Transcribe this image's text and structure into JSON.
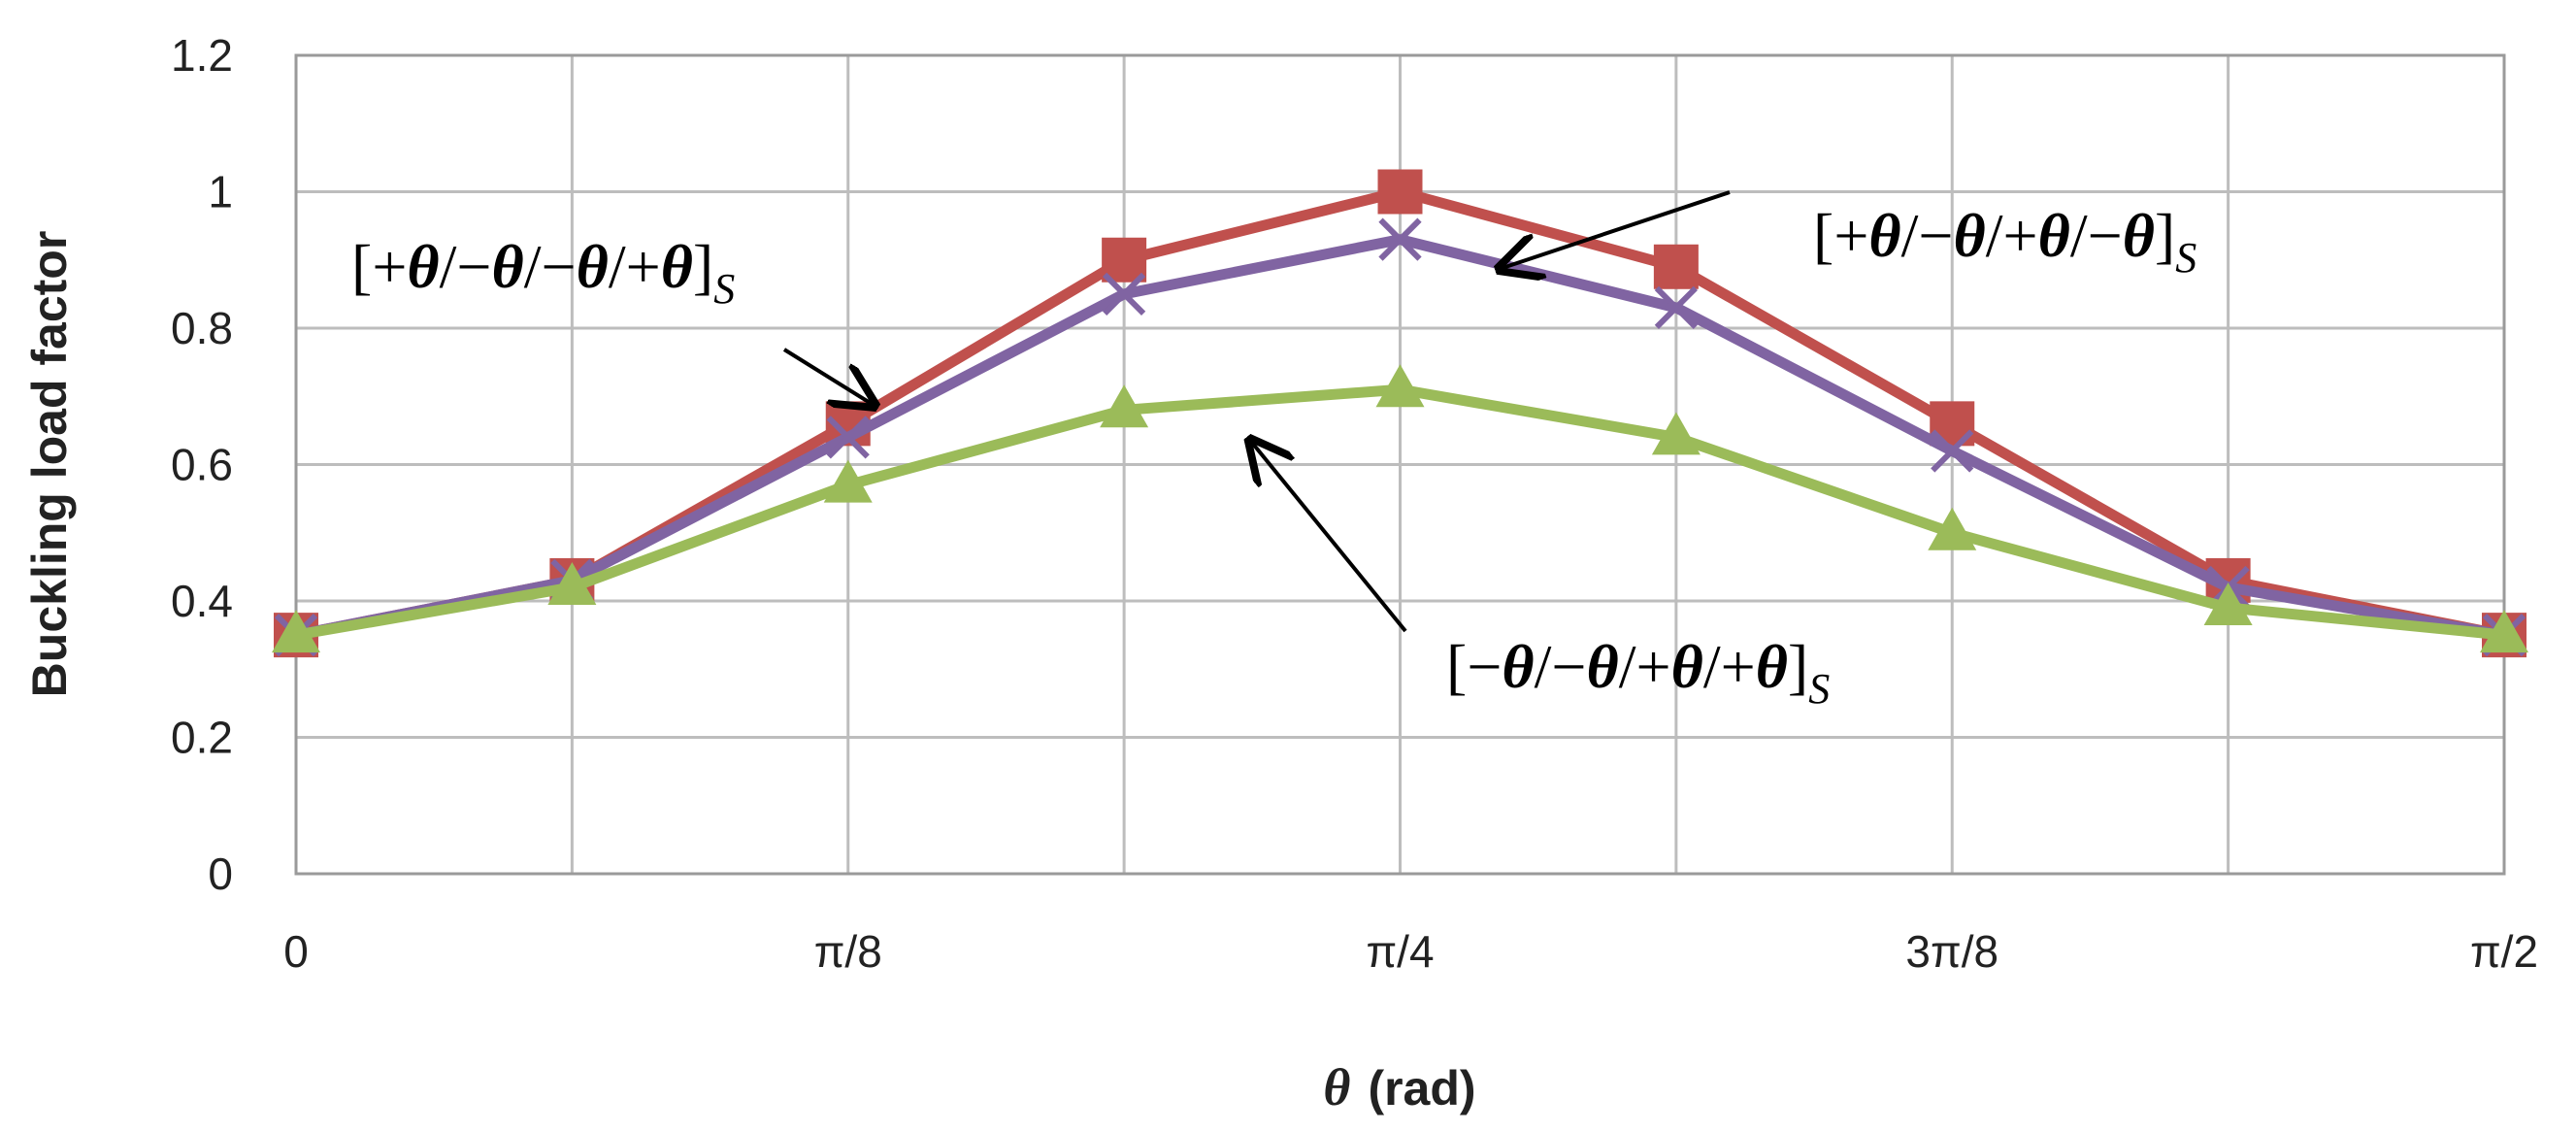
{
  "chart_data": {
    "type": "line",
    "x": [
      0,
      0.19635,
      0.3927,
      0.58905,
      0.7854,
      0.98175,
      1.1781,
      1.37445,
      1.5708
    ],
    "xticks": [
      {
        "value": 0,
        "label": "0"
      },
      {
        "value": 0.3927,
        "label": "π/8"
      },
      {
        "value": 0.7854,
        "label": "π/4"
      },
      {
        "value": 1.1781,
        "label": "3π/8"
      },
      {
        "value": 1.5708,
        "label": "π/2"
      }
    ],
    "xlim": [
      0,
      1.5708
    ],
    "ylim": [
      0,
      1.2
    ],
    "yticks": [
      0,
      0.2,
      0.4,
      0.6,
      0.8,
      1,
      1.2
    ],
    "ytick_labels": [
      "0",
      "0.2",
      "0.4",
      "0.6",
      "0.8",
      "1",
      "1.2"
    ],
    "xlabel_symbol": "θ",
    "xlabel_unit": "(rad)",
    "ylabel": "Buckling load factor",
    "grid": true,
    "series": [
      {
        "values": [
          0.35,
          0.43,
          0.66,
          0.9,
          1.0,
          0.89,
          0.66,
          0.43,
          0.35
        ],
        "color": "#c0504d",
        "marker": "square"
      },
      {
        "values": [
          0.35,
          0.43,
          0.64,
          0.85,
          0.93,
          0.83,
          0.62,
          0.42,
          0.35
        ],
        "color": "#8064a2",
        "marker": "x"
      },
      {
        "values": [
          0.35,
          0.42,
          0.57,
          0.68,
          0.71,
          0.64,
          0.5,
          0.39,
          0.35
        ],
        "color": "#9bbb59",
        "marker": "triangle"
      }
    ],
    "annotations": [
      {
        "id": "a1",
        "parts": [
          "[+",
          "θ",
          "/−",
          "θ",
          "/−",
          "θ",
          "/+",
          "θ",
          "]"
        ],
        "subscript": "S"
      },
      {
        "id": "a2",
        "parts": [
          "[+",
          "θ",
          "/−",
          "θ",
          "/+",
          "θ",
          "/−",
          "θ",
          "]"
        ],
        "subscript": "S"
      },
      {
        "id": "a3",
        "parts": [
          "[−",
          "θ",
          "/−",
          "θ",
          "/+",
          "θ",
          "/+",
          "θ",
          "]"
        ],
        "subscript": "S"
      }
    ]
  }
}
